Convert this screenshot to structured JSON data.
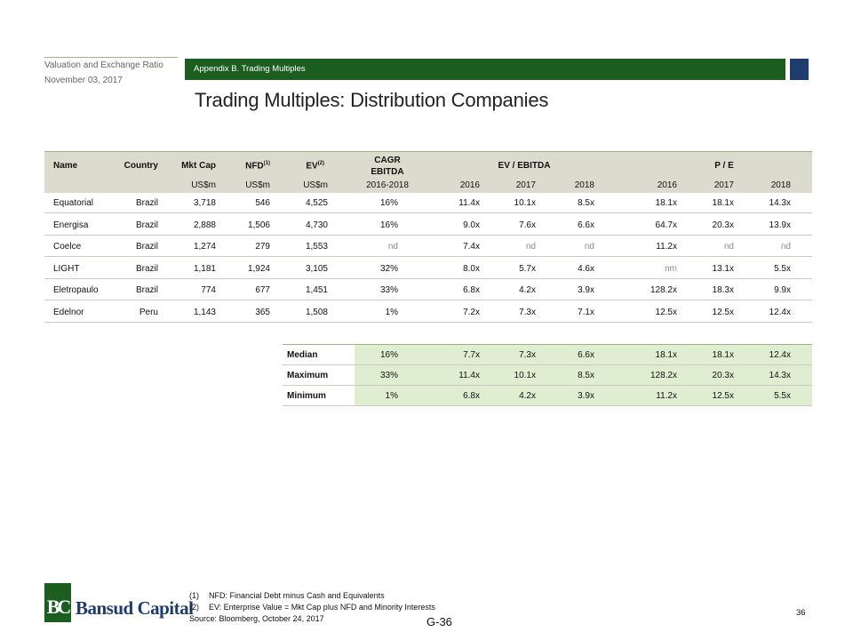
{
  "header": {
    "section": "Valuation and Exchange Ratio",
    "date": "November 03, 2017",
    "banner": "Appendix B. Trading Multiples",
    "title": "Trading Multiples: Distribution Companies"
  },
  "table": {
    "group_headers": {
      "cagr": "CAGR",
      "cagr2": "EBITDA",
      "ev_ebitda": "EV / EBITDA",
      "pe": "P / E"
    },
    "col_headers": {
      "name": "Name",
      "country": "Country",
      "mktcap": "Mkt Cap",
      "nfd": "NFD",
      "nfd_sup": "(1)",
      "ev": "EV",
      "ev_sup": "(2)"
    },
    "sub_headers": [
      "US$m",
      "US$m",
      "US$m",
      "2016-2018",
      "2016",
      "2017",
      "2018",
      "2016",
      "2017",
      "2018"
    ],
    "rows": [
      [
        "Equatorial",
        "Brazil",
        "3,718",
        "546",
        "4,525",
        "16%",
        "11.4x",
        "10.1x",
        "8.5x",
        "18.1x",
        "18.1x",
        "14.3x"
      ],
      [
        "Energisa",
        "Brazil",
        "2,888",
        "1,506",
        "4,730",
        "16%",
        "9.0x",
        "7.6x",
        "6.6x",
        "64.7x",
        "20.3x",
        "13.9x"
      ],
      [
        "Coelce",
        "Brazil",
        "1,274",
        "279",
        "1,553",
        "nd",
        "7.4x",
        "nd",
        "nd",
        "11.2x",
        "nd",
        "nd"
      ],
      [
        "LIGHT",
        "Brazil",
        "1,181",
        "1,924",
        "3,105",
        "32%",
        "8.0x",
        "5.7x",
        "4.6x",
        "nm",
        "13.1x",
        "5.5x"
      ],
      [
        "Eletropaulo",
        "Brazil",
        "774",
        "677",
        "1,451",
        "33%",
        "6.8x",
        "4.2x",
        "3.9x",
        "128.2x",
        "18.3x",
        "9.9x"
      ],
      [
        "Edelnor",
        "Peru",
        "1,143",
        "365",
        "1,508",
        "1%",
        "7.2x",
        "7.3x",
        "7.1x",
        "12.5x",
        "12.5x",
        "12.4x"
      ]
    ]
  },
  "summary": [
    [
      "Median",
      "16%",
      "7.7x",
      "7.3x",
      "6.6x",
      "18.1x",
      "18.1x",
      "12.4x"
    ],
    [
      "Maximum",
      "33%",
      "11.4x",
      "10.1x",
      "8.5x",
      "128.2x",
      "20.3x",
      "14.3x"
    ],
    [
      "Minimum",
      "1%",
      "6.8x",
      "4.2x",
      "3.9x",
      "11.2x",
      "12.5x",
      "5.5x"
    ]
  ],
  "footnotes": [
    {
      "num": "(1)",
      "text": "NFD: Financial Debt minus Cash and Equivalents"
    },
    {
      "num": "(2)",
      "text": "EV: Enterprise Value = Mkt Cap plus NFD and Minority Interests"
    }
  ],
  "source": "Source: Bloomberg, October 24, 2017",
  "page_number": "36",
  "exhibit_number": "G-36",
  "logo": {
    "mark": "BC",
    "name": "Bansud Capital"
  },
  "colors": {
    "green": "#1b5e20",
    "navy": "#1f3c6e",
    "header_bg": "#dcdcce",
    "summary_bg": "#dfedd0",
    "muted": "#8a8a8a"
  }
}
